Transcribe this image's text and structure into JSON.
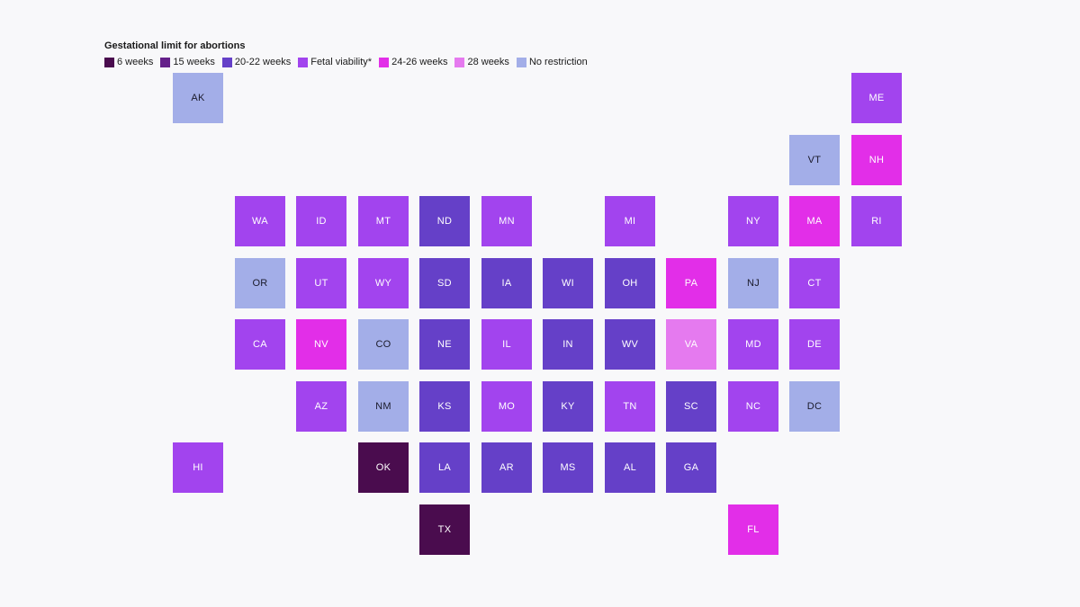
{
  "title": "Gestational limit for abortions",
  "legend": [
    {
      "key": "6w",
      "label": "6 weeks",
      "color": "#4a0c4e"
    },
    {
      "key": "15w",
      "label": "15 weeks",
      "color": "#65208a"
    },
    {
      "key": "20w",
      "label": "20-22 weeks",
      "color": "#6540c8"
    },
    {
      "key": "fv",
      "label": "Fetal viability*",
      "color": "#a244ee"
    },
    {
      "key": "24w",
      "label": "24-26 weeks",
      "color": "#e22ee8"
    },
    {
      "key": "28w",
      "label": "28 weeks",
      "color": "#e57aef"
    },
    {
      "key": "none",
      "label": "No restriction",
      "color": "#a3aee8"
    }
  ],
  "states": [
    {
      "abbr": "AK",
      "cat": "none",
      "col": 0,
      "row": 0
    },
    {
      "abbr": "ME",
      "cat": "fv",
      "col": 11,
      "row": 0
    },
    {
      "abbr": "VT",
      "cat": "none",
      "col": 10,
      "row": 1
    },
    {
      "abbr": "NH",
      "cat": "24w",
      "col": 11,
      "row": 1
    },
    {
      "abbr": "WA",
      "cat": "fv",
      "col": 1,
      "row": 2
    },
    {
      "abbr": "ID",
      "cat": "fv",
      "col": 2,
      "row": 2
    },
    {
      "abbr": "MT",
      "cat": "fv",
      "col": 3,
      "row": 2
    },
    {
      "abbr": "ND",
      "cat": "20w",
      "col": 4,
      "row": 2
    },
    {
      "abbr": "MN",
      "cat": "fv",
      "col": 5,
      "row": 2
    },
    {
      "abbr": "MI",
      "cat": "fv",
      "col": 7,
      "row": 2
    },
    {
      "abbr": "NY",
      "cat": "fv",
      "col": 9,
      "row": 2
    },
    {
      "abbr": "MA",
      "cat": "24w",
      "col": 10,
      "row": 2
    },
    {
      "abbr": "RI",
      "cat": "fv",
      "col": 11,
      "row": 2
    },
    {
      "abbr": "OR",
      "cat": "none",
      "col": 1,
      "row": 3
    },
    {
      "abbr": "UT",
      "cat": "fv",
      "col": 2,
      "row": 3
    },
    {
      "abbr": "WY",
      "cat": "fv",
      "col": 3,
      "row": 3
    },
    {
      "abbr": "SD",
      "cat": "20w",
      "col": 4,
      "row": 3
    },
    {
      "abbr": "IA",
      "cat": "20w",
      "col": 5,
      "row": 3
    },
    {
      "abbr": "WI",
      "cat": "20w",
      "col": 6,
      "row": 3
    },
    {
      "abbr": "OH",
      "cat": "20w",
      "col": 7,
      "row": 3
    },
    {
      "abbr": "PA",
      "cat": "24w",
      "col": 8,
      "row": 3
    },
    {
      "abbr": "NJ",
      "cat": "none",
      "col": 9,
      "row": 3
    },
    {
      "abbr": "CT",
      "cat": "fv",
      "col": 10,
      "row": 3
    },
    {
      "abbr": "CA",
      "cat": "fv",
      "col": 1,
      "row": 4
    },
    {
      "abbr": "NV",
      "cat": "24w",
      "col": 2,
      "row": 4
    },
    {
      "abbr": "CO",
      "cat": "none",
      "col": 3,
      "row": 4
    },
    {
      "abbr": "NE",
      "cat": "20w",
      "col": 4,
      "row": 4
    },
    {
      "abbr": "IL",
      "cat": "fv",
      "col": 5,
      "row": 4
    },
    {
      "abbr": "IN",
      "cat": "20w",
      "col": 6,
      "row": 4
    },
    {
      "abbr": "WV",
      "cat": "20w",
      "col": 7,
      "row": 4
    },
    {
      "abbr": "VA",
      "cat": "28w",
      "col": 8,
      "row": 4
    },
    {
      "abbr": "MD",
      "cat": "fv",
      "col": 9,
      "row": 4
    },
    {
      "abbr": "DE",
      "cat": "fv",
      "col": 10,
      "row": 4
    },
    {
      "abbr": "AZ",
      "cat": "fv",
      "col": 2,
      "row": 5
    },
    {
      "abbr": "NM",
      "cat": "none",
      "col": 3,
      "row": 5
    },
    {
      "abbr": "KS",
      "cat": "20w",
      "col": 4,
      "row": 5
    },
    {
      "abbr": "MO",
      "cat": "fv",
      "col": 5,
      "row": 5
    },
    {
      "abbr": "KY",
      "cat": "20w",
      "col": 6,
      "row": 5
    },
    {
      "abbr": "TN",
      "cat": "fv",
      "col": 7,
      "row": 5
    },
    {
      "abbr": "SC",
      "cat": "20w",
      "col": 8,
      "row": 5
    },
    {
      "abbr": "NC",
      "cat": "fv",
      "col": 9,
      "row": 5
    },
    {
      "abbr": "DC",
      "cat": "none",
      "col": 10,
      "row": 5
    },
    {
      "abbr": "HI",
      "cat": "fv",
      "col": 0,
      "row": 6
    },
    {
      "abbr": "OK",
      "cat": "6w",
      "col": 3,
      "row": 6
    },
    {
      "abbr": "LA",
      "cat": "20w",
      "col": 4,
      "row": 6
    },
    {
      "abbr": "AR",
      "cat": "20w",
      "col": 5,
      "row": 6
    },
    {
      "abbr": "MS",
      "cat": "20w",
      "col": 6,
      "row": 6
    },
    {
      "abbr": "AL",
      "cat": "20w",
      "col": 7,
      "row": 6
    },
    {
      "abbr": "GA",
      "cat": "20w",
      "col": 8,
      "row": 6
    },
    {
      "abbr": "TX",
      "cat": "6w",
      "col": 4,
      "row": 7
    },
    {
      "abbr": "FL",
      "cat": "24w",
      "col": 9,
      "row": 7
    }
  ]
}
